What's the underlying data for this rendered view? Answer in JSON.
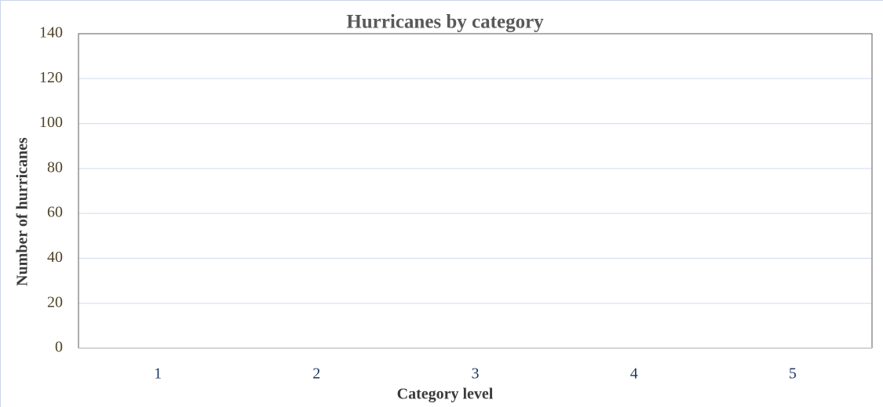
{
  "chart_data": {
    "type": "bar",
    "title": "Hurricanes by category",
    "x_label": "Category level",
    "y_label": "Number of hurricanes",
    "categories": [
      "1",
      "2",
      "3",
      "4",
      "5"
    ],
    "values": [
      0,
      0,
      0,
      0,
      0
    ],
    "color": "#4472c4",
    "ylim": [
      0,
      140
    ],
    "yticks": [
      0,
      20,
      40,
      60,
      80,
      100,
      120,
      140
    ],
    "grid": true
  }
}
